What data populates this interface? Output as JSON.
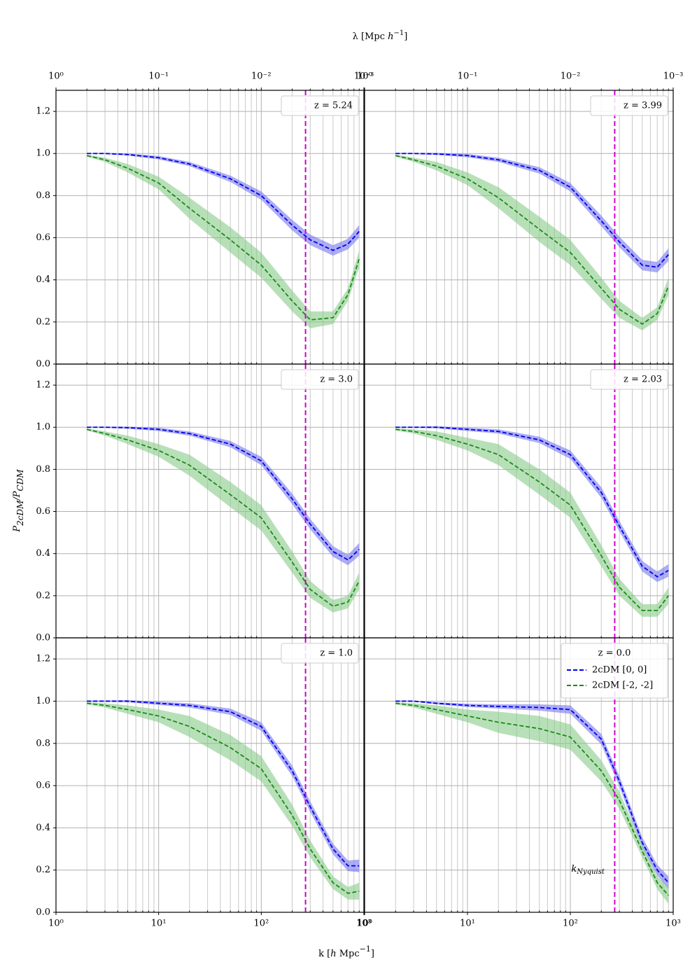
{
  "chart_data": {
    "type": "line",
    "x2label": [
      "λ [Mpc ",
      "h",
      "−1",
      "]"
    ],
    "xlabel": [
      "k [",
      "h",
      " Mpc",
      "−1",
      "]"
    ],
    "ylabel": [
      "P",
      "2cDM",
      "/P",
      "CDM"
    ],
    "xlim": [
      1,
      1000
    ],
    "log_x": true,
    "xticks": [
      {
        "value": 1,
        "label": "10⁰"
      },
      {
        "value": 10,
        "label": "10¹"
      },
      {
        "value": 100,
        "label": "10²"
      },
      {
        "value": 1000,
        "label": "10³"
      }
    ],
    "x2lim": [
      1,
      0.001
    ],
    "x2ticks": [
      {
        "value": 1,
        "label": "10⁰"
      },
      {
        "value": 0.1,
        "label": "10⁻¹"
      },
      {
        "value": 0.01,
        "label": "10⁻²"
      },
      {
        "value": 0.001,
        "label": "10⁻³"
      }
    ],
    "ylim": [
      0,
      1.3
    ],
    "yticks": [
      {
        "value": 0,
        "label": "0.0"
      },
      0.2,
      0.4,
      0.6,
      0.8,
      {
        "value": 1,
        "label": "1.0"
      },
      1.2
    ],
    "grid": "both",
    "nyquist": {
      "value": 270,
      "symbol": "k",
      "subscript": "Nyquist",
      "color": "#cc00cc"
    },
    "legend": "upper right",
    "x": [
      2,
      3,
      5,
      10,
      20,
      50,
      100,
      200,
      300,
      500,
      700,
      900
    ],
    "panels": [
      {
        "title": "z = 5.24",
        "series": [
          {
            "name": "2cDM [0, 0]",
            "color": "#0000ee",
            "band_color": "#7777ee",
            "values": [
              1,
              1,
              0.995,
              0.98,
              0.95,
              0.88,
              0.8,
              0.66,
              0.59,
              0.54,
              0.57,
              0.63
            ],
            "errors": [
              0.003,
              0.003,
              0.005,
              0.008,
              0.01,
              0.015,
              0.02,
              0.025,
              0.025,
              0.025,
              0.025,
              0.03
            ]
          },
          {
            "name": "2cDM [-2, -2]",
            "color": "#1a8a1a",
            "band_color": "#88cc88",
            "values": [
              0.99,
              0.97,
              0.93,
              0.86,
              0.74,
              0.59,
              0.47,
              0.3,
              0.21,
              0.22,
              0.33,
              0.5
            ],
            "errors": [
              0.005,
              0.01,
              0.02,
              0.03,
              0.05,
              0.06,
              0.06,
              0.05,
              0.04,
              0.03,
              0.03,
              0.04
            ]
          }
        ]
      },
      {
        "title": "z = 3.99",
        "series": [
          {
            "name": "2cDM [0, 0]",
            "color": "#0000ee",
            "band_color": "#7777ee",
            "values": [
              1,
              1,
              0.998,
              0.99,
              0.97,
              0.92,
              0.84,
              0.68,
              0.58,
              0.47,
              0.46,
              0.52
            ],
            "errors": [
              0.003,
              0.003,
              0.005,
              0.008,
              0.01,
              0.015,
              0.02,
              0.025,
              0.025,
              0.025,
              0.025,
              0.03
            ]
          },
          {
            "name": "2cDM [-2, -2]",
            "color": "#1a8a1a",
            "band_color": "#88cc88",
            "values": [
              0.99,
              0.97,
              0.94,
              0.88,
              0.79,
              0.64,
              0.53,
              0.36,
              0.26,
              0.19,
              0.24,
              0.37
            ],
            "errors": [
              0.005,
              0.01,
              0.02,
              0.03,
              0.05,
              0.06,
              0.06,
              0.05,
              0.04,
              0.03,
              0.03,
              0.04
            ]
          }
        ]
      },
      {
        "title": "z = 3.0",
        "series": [
          {
            "name": "2cDM [0, 0]",
            "color": "#0000ee",
            "band_color": "#7777ee",
            "values": [
              1,
              1,
              0.998,
              0.99,
              0.97,
              0.92,
              0.84,
              0.66,
              0.54,
              0.41,
              0.37,
              0.42
            ],
            "errors": [
              0.003,
              0.003,
              0.005,
              0.008,
              0.01,
              0.015,
              0.02,
              0.025,
              0.025,
              0.025,
              0.025,
              0.03
            ]
          },
          {
            "name": "2cDM [-2, -2]",
            "color": "#1a8a1a",
            "band_color": "#88cc88",
            "values": [
              0.99,
              0.97,
              0.94,
              0.89,
              0.82,
              0.68,
              0.57,
              0.36,
              0.23,
              0.15,
              0.17,
              0.27
            ],
            "errors": [
              0.005,
              0.01,
              0.02,
              0.03,
              0.05,
              0.06,
              0.06,
              0.05,
              0.04,
              0.03,
              0.03,
              0.04
            ]
          }
        ]
      },
      {
        "title": "z = 2.03",
        "series": [
          {
            "name": "2cDM [0, 0]",
            "color": "#0000ee",
            "band_color": "#7777ee",
            "values": [
              1,
              1,
              1,
              0.99,
              0.98,
              0.94,
              0.87,
              0.69,
              0.53,
              0.34,
              0.29,
              0.32
            ],
            "errors": [
              0.003,
              0.003,
              0.005,
              0.008,
              0.01,
              0.015,
              0.02,
              0.025,
              0.025,
              0.025,
              0.025,
              0.03
            ]
          },
          {
            "name": "2cDM [-2, -2]",
            "color": "#1a8a1a",
            "band_color": "#88cc88",
            "values": [
              0.99,
              0.98,
              0.96,
              0.92,
              0.87,
              0.74,
              0.63,
              0.39,
              0.24,
              0.13,
              0.13,
              0.2
            ],
            "errors": [
              0.005,
              0.01,
              0.02,
              0.03,
              0.05,
              0.06,
              0.06,
              0.05,
              0.04,
              0.03,
              0.03,
              0.04
            ]
          }
        ]
      },
      {
        "title": "z = 1.0",
        "series": [
          {
            "name": "2cDM [0, 0]",
            "color": "#0000ee",
            "band_color": "#7777ee",
            "values": [
              1,
              1,
              1,
              0.99,
              0.98,
              0.95,
              0.88,
              0.67,
              0.5,
              0.3,
              0.22,
              0.22
            ],
            "errors": [
              0.003,
              0.003,
              0.005,
              0.008,
              0.01,
              0.015,
              0.02,
              0.025,
              0.025,
              0.025,
              0.025,
              0.03
            ]
          },
          {
            "name": "2cDM [-2, -2]",
            "color": "#1a8a1a",
            "band_color": "#88cc88",
            "values": [
              0.99,
              0.98,
              0.96,
              0.93,
              0.88,
              0.78,
              0.68,
              0.46,
              0.3,
              0.14,
              0.09,
              0.1
            ],
            "errors": [
              0.005,
              0.01,
              0.02,
              0.03,
              0.05,
              0.06,
              0.06,
              0.05,
              0.04,
              0.03,
              0.03,
              0.04
            ]
          }
        ]
      },
      {
        "title": "z = 0.0",
        "show_entries": true,
        "show_nyquist_label": true,
        "series": [
          {
            "name": "2cDM [0, 0]",
            "color": "#0000ee",
            "band_color": "#7777ee",
            "values": [
              1,
              1,
              0.99,
              0.98,
              0.975,
              0.97,
              0.96,
              0.82,
              0.62,
              0.33,
              0.2,
              0.14
            ],
            "errors": [
              0.003,
              0.003,
              0.005,
              0.008,
              0.01,
              0.015,
              0.02,
              0.025,
              0.025,
              0.025,
              0.025,
              0.03
            ]
          },
          {
            "name": "2cDM [-2, -2]",
            "color": "#1a8a1a",
            "band_color": "#88cc88",
            "values": [
              0.99,
              0.98,
              0.96,
              0.93,
              0.9,
              0.87,
              0.83,
              0.67,
              0.53,
              0.29,
              0.14,
              0.08
            ],
            "errors": [
              0.005,
              0.01,
              0.02,
              0.03,
              0.05,
              0.06,
              0.06,
              0.05,
              0.04,
              0.03,
              0.03,
              0.04
            ]
          }
        ]
      }
    ]
  }
}
